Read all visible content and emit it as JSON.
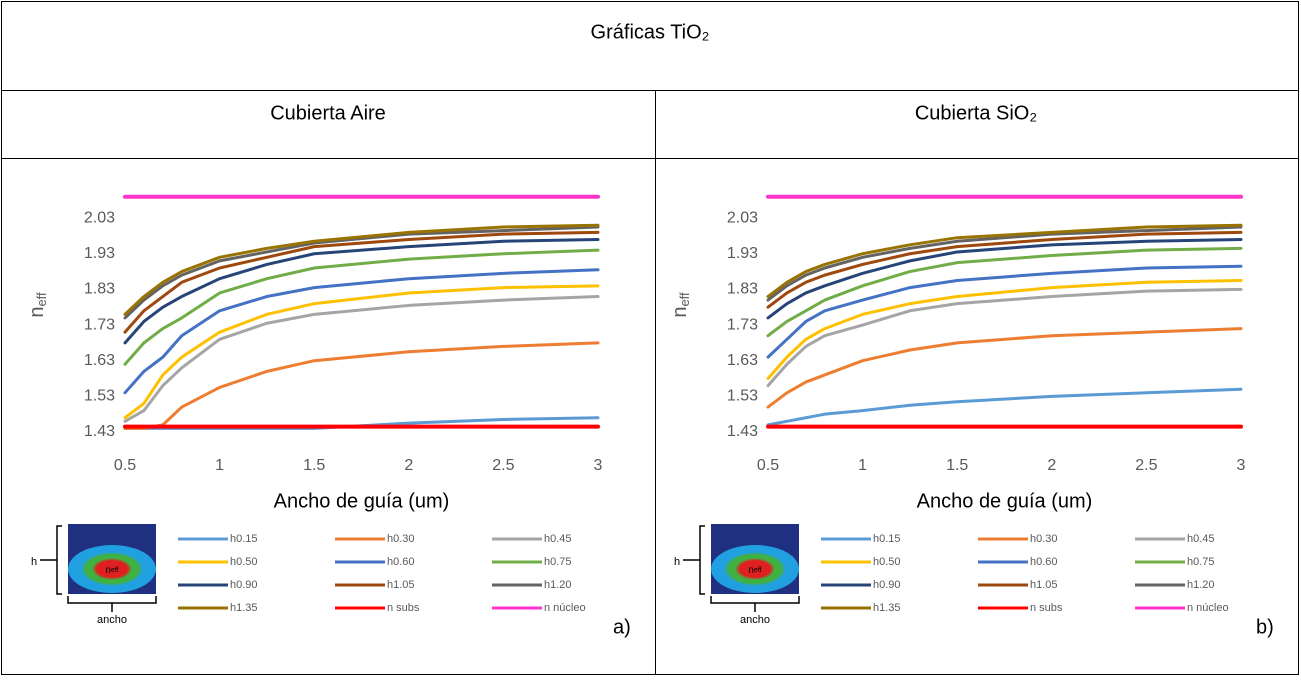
{
  "title": "Gráficas TiO₂",
  "columns": [
    "Cubierta Aire",
    "Cubierta SiO₂"
  ],
  "chart_data": [
    {
      "type": "line",
      "panel_label": "a)",
      "xlabel": "Ancho de guía (um)",
      "ylabel": "n",
      "ylabel_subscript": "eff",
      "inset": {
        "height_label": "h",
        "width_label": "ancho",
        "mode_label": "n",
        "mode_label_subscript": "eff"
      },
      "x": [
        0.5,
        0.6,
        0.7,
        0.8,
        1,
        1.25,
        1.5,
        2,
        2.5,
        3
      ],
      "xlim": [
        0.5,
        3
      ],
      "xticks": [
        0.5,
        1,
        1.5,
        2,
        2.5,
        3
      ],
      "ylim": [
        1.43,
        2.12
      ],
      "yticks": [
        1.43,
        1.53,
        1.63,
        1.73,
        1.83,
        1.93,
        2.03
      ],
      "series": [
        {
          "name": "h0.15",
          "color": "#5b9bd5",
          "values": [
            1.44,
            1.44,
            1.44,
            1.44,
            1.44,
            1.44,
            1.44,
            1.455,
            1.465,
            1.47
          ]
        },
        {
          "name": "h0.30",
          "color": "#ed7d31",
          "values": [
            1.44,
            1.44,
            1.45,
            1.5,
            1.555,
            1.6,
            1.63,
            1.655,
            1.67,
            1.68
          ]
        },
        {
          "name": "h0.45",
          "color": "#a5a5a5",
          "values": [
            1.46,
            1.49,
            1.56,
            1.61,
            1.69,
            1.735,
            1.76,
            1.785,
            1.8,
            1.81
          ]
        },
        {
          "name": "h0.50",
          "color": "#ffc000",
          "values": [
            1.47,
            1.51,
            1.59,
            1.64,
            1.71,
            1.76,
            1.79,
            1.82,
            1.835,
            1.84
          ]
        },
        {
          "name": "h0.60",
          "color": "#4472c4",
          "values": [
            1.54,
            1.6,
            1.64,
            1.7,
            1.77,
            1.81,
            1.835,
            1.86,
            1.875,
            1.885
          ]
        },
        {
          "name": "h0.75",
          "color": "#70ad47",
          "values": [
            1.62,
            1.68,
            1.72,
            1.75,
            1.82,
            1.86,
            1.89,
            1.915,
            1.93,
            1.94
          ]
        },
        {
          "name": "h0.90",
          "color": "#264478",
          "values": [
            1.68,
            1.74,
            1.78,
            1.81,
            1.86,
            1.9,
            1.93,
            1.95,
            1.965,
            1.97
          ]
        },
        {
          "name": "h1.05",
          "color": "#9e480e",
          "values": [
            1.71,
            1.77,
            1.81,
            1.85,
            1.89,
            1.92,
            1.95,
            1.97,
            1.985,
            1.99
          ]
        },
        {
          "name": "h1.20",
          "color": "#636363",
          "values": [
            1.75,
            1.8,
            1.84,
            1.87,
            1.91,
            1.935,
            1.96,
            1.985,
            1.995,
            2.005
          ]
        },
        {
          "name": "h1.35",
          "color": "#997300",
          "values": [
            1.76,
            1.81,
            1.85,
            1.88,
            1.92,
            1.945,
            1.965,
            1.99,
            2.005,
            2.01
          ]
        },
        {
          "name": "n subs",
          "color": "#ff0000",
          "values": [
            1.445,
            1.445,
            1.445,
            1.445,
            1.445,
            1.445,
            1.445,
            1.445,
            1.445,
            1.445
          ]
        },
        {
          "name": "n núcleo",
          "color": "#ff33cc",
          "values": [
            2.09,
            2.09,
            2.09,
            2.09,
            2.09,
            2.09,
            2.09,
            2.09,
            2.09,
            2.09
          ]
        }
      ]
    },
    {
      "type": "line",
      "panel_label": "b)",
      "xlabel": "Ancho de guía (um)",
      "ylabel": "n",
      "ylabel_subscript": "eff",
      "inset": {
        "height_label": "h",
        "width_label": "ancho",
        "mode_label": "n",
        "mode_label_subscript": "eff"
      },
      "x": [
        0.5,
        0.6,
        0.7,
        0.8,
        1,
        1.25,
        1.5,
        2,
        2.5,
        3
      ],
      "xlim": [
        0.5,
        3
      ],
      "xticks": [
        0.5,
        1,
        1.5,
        2,
        2.5,
        3
      ],
      "ylim": [
        1.43,
        2.12
      ],
      "yticks": [
        1.43,
        1.53,
        1.63,
        1.73,
        1.83,
        1.93,
        2.03
      ],
      "series": [
        {
          "name": "h0.15",
          "color": "#5b9bd5",
          "values": [
            1.45,
            1.46,
            1.47,
            1.48,
            1.49,
            1.505,
            1.515,
            1.53,
            1.54,
            1.55
          ]
        },
        {
          "name": "h0.30",
          "color": "#ed7d31",
          "values": [
            1.5,
            1.54,
            1.57,
            1.59,
            1.63,
            1.66,
            1.68,
            1.7,
            1.71,
            1.72
          ]
        },
        {
          "name": "h0.45",
          "color": "#a5a5a5",
          "values": [
            1.56,
            1.62,
            1.67,
            1.7,
            1.73,
            1.77,
            1.79,
            1.81,
            1.825,
            1.83
          ]
        },
        {
          "name": "h0.50",
          "color": "#ffc000",
          "values": [
            1.58,
            1.64,
            1.69,
            1.72,
            1.76,
            1.79,
            1.81,
            1.835,
            1.85,
            1.855
          ]
        },
        {
          "name": "h0.60",
          "color": "#4472c4",
          "values": [
            1.64,
            1.69,
            1.74,
            1.77,
            1.8,
            1.835,
            1.855,
            1.875,
            1.89,
            1.895
          ]
        },
        {
          "name": "h0.75",
          "color": "#70ad47",
          "values": [
            1.7,
            1.74,
            1.77,
            1.8,
            1.84,
            1.88,
            1.905,
            1.925,
            1.94,
            1.945
          ]
        },
        {
          "name": "h0.90",
          "color": "#264478",
          "values": [
            1.75,
            1.79,
            1.82,
            1.84,
            1.875,
            1.91,
            1.935,
            1.955,
            1.965,
            1.97
          ]
        },
        {
          "name": "h1.05",
          "color": "#9e480e",
          "values": [
            1.78,
            1.82,
            1.85,
            1.87,
            1.9,
            1.93,
            1.95,
            1.97,
            1.985,
            1.99
          ]
        },
        {
          "name": "h1.20",
          "color": "#636363",
          "values": [
            1.8,
            1.84,
            1.87,
            1.89,
            1.92,
            1.945,
            1.965,
            1.985,
            1.995,
            2.005
          ]
        },
        {
          "name": "h1.35",
          "color": "#997300",
          "values": [
            1.81,
            1.85,
            1.88,
            1.9,
            1.93,
            1.955,
            1.975,
            1.99,
            2.005,
            2.01
          ]
        },
        {
          "name": "n subs",
          "color": "#ff0000",
          "values": [
            1.445,
            1.445,
            1.445,
            1.445,
            1.445,
            1.445,
            1.445,
            1.445,
            1.445,
            1.445
          ]
        },
        {
          "name": "n núcleo",
          "color": "#ff33cc",
          "values": [
            2.09,
            2.09,
            2.09,
            2.09,
            2.09,
            2.09,
            2.09,
            2.09,
            2.09,
            2.09
          ]
        }
      ]
    }
  ]
}
